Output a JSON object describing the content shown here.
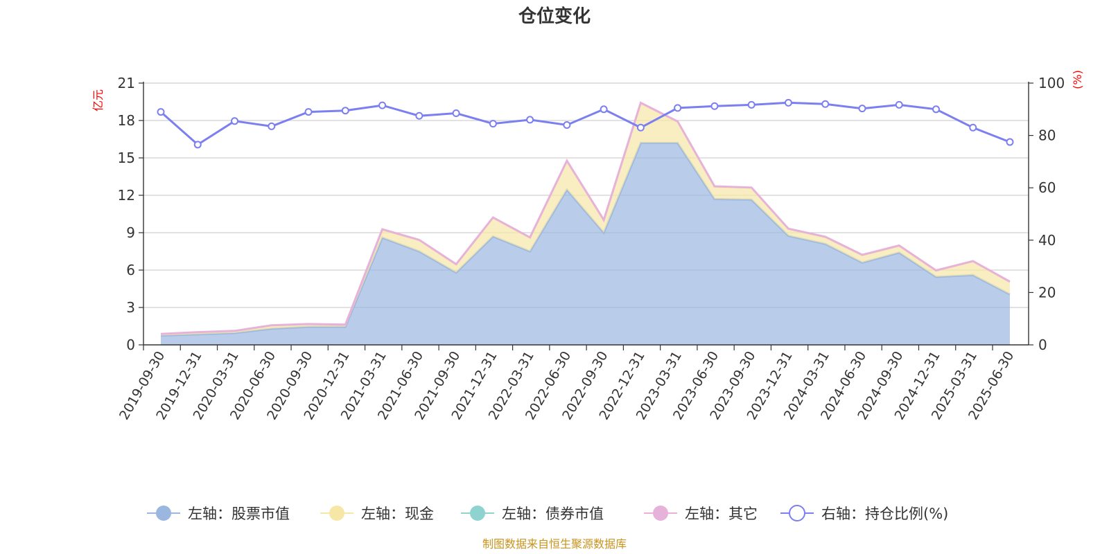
{
  "chart_data": {
    "type": "area",
    "title": "仓位变化",
    "source_note": "制图数据来自恒生聚源数据库",
    "left_axis_unit": "亿元",
    "right_axis_unit": "(%)",
    "left_ylim": [
      0,
      21
    ],
    "left_ticks": [
      "0",
      "3",
      "6",
      "9",
      "12",
      "15",
      "18",
      "21"
    ],
    "right_ylim": [
      0,
      100
    ],
    "right_ticks": [
      "0",
      "20",
      "40",
      "60",
      "80",
      "100"
    ],
    "grid": true,
    "legend_position": "bottom",
    "categories": [
      "2019-09-30",
      "2019-12-31",
      "2020-03-31",
      "2020-06-30",
      "2020-09-30",
      "2020-12-31",
      "2021-03-31",
      "2021-06-30",
      "2021-09-30",
      "2021-12-31",
      "2022-03-31",
      "2022-06-30",
      "2022-09-30",
      "2022-12-31",
      "2023-03-31",
      "2023-06-30",
      "2023-09-30",
      "2023-12-31",
      "2024-03-31",
      "2024-06-30",
      "2024-09-30",
      "2024-12-31",
      "2025-03-31",
      "2025-06-30"
    ],
    "series": [
      {
        "name": "左轴：股票市值",
        "axis": "left",
        "kind": "stacked-area",
        "color": "#9bb7e0",
        "values": [
          0.75,
          0.85,
          0.95,
          1.3,
          1.45,
          1.45,
          8.6,
          7.5,
          5.8,
          8.7,
          7.5,
          12.45,
          9.0,
          16.2,
          16.2,
          11.7,
          11.65,
          8.75,
          8.1,
          6.6,
          7.4,
          5.45,
          5.6,
          4.05
        ]
      },
      {
        "name": "左轴：现金",
        "axis": "left",
        "kind": "stacked-area",
        "color": "#f7e7a6",
        "values": [
          0.1,
          0.15,
          0.15,
          0.25,
          0.2,
          0.15,
          0.65,
          0.9,
          0.65,
          1.5,
          1.1,
          2.3,
          1.0,
          3.2,
          1.7,
          1.0,
          0.95,
          0.55,
          0.55,
          0.6,
          0.55,
          0.5,
          1.1,
          1.0
        ]
      },
      {
        "name": "左轴：债券市值",
        "axis": "left",
        "kind": "stacked-area",
        "color": "#8fd3d0",
        "values": [
          0,
          0,
          0,
          0,
          0,
          0,
          0,
          0,
          0,
          0,
          0,
          0,
          0,
          0,
          0,
          0,
          0,
          0,
          0,
          0,
          0,
          0,
          0,
          0
        ]
      },
      {
        "name": "左轴：其它",
        "axis": "left",
        "kind": "stacked-area",
        "color": "#e7b2da",
        "values": [
          0.02,
          0.02,
          0.02,
          0.02,
          0.02,
          0.02,
          0.02,
          0.02,
          0.02,
          0.02,
          0.02,
          0.02,
          0.02,
          0.02,
          0.02,
          0.02,
          0.02,
          0.02,
          0.02,
          0.02,
          0.02,
          0.02,
          0.02,
          0.02
        ]
      },
      {
        "name": "右轴：持仓比例(%)",
        "axis": "right",
        "kind": "line",
        "color": "#7b7ff0",
        "values": [
          89,
          76.5,
          85.5,
          83.5,
          89,
          89.5,
          91.5,
          87.5,
          88.5,
          84.5,
          86,
          84,
          90,
          83,
          90.5,
          91.2,
          91.7,
          92.5,
          92,
          90.3,
          91.7,
          90,
          83,
          77.5
        ]
      }
    ]
  }
}
